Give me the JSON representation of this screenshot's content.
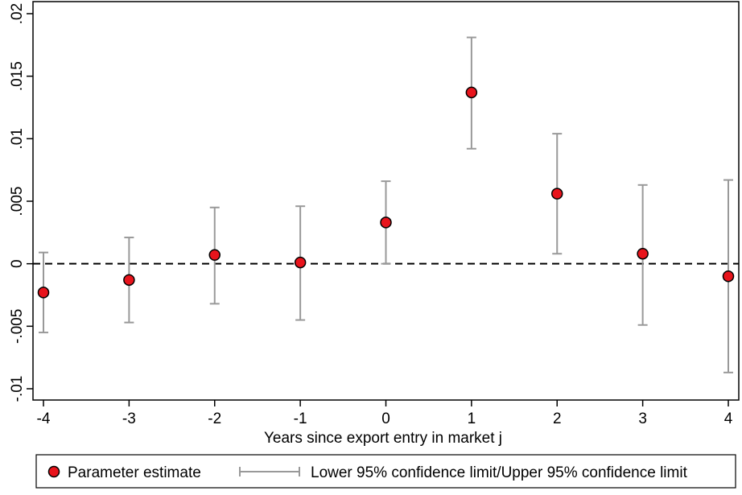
{
  "chart_data": {
    "type": "scatter",
    "title": "",
    "xlabel": "Years since export entry in market j",
    "ylabel": "",
    "x": [
      -4,
      -3,
      -2,
      -1,
      0,
      1,
      2,
      3,
      4
    ],
    "x_tick_labels": [
      "-4",
      "-3",
      "-2",
      "-1",
      "0",
      "1",
      "2",
      "3",
      "4"
    ],
    "y_ticks": [
      -0.01,
      -0.005,
      0,
      0.005,
      0.01,
      0.015,
      0.02
    ],
    "y_tick_labels": [
      "-.01",
      "-.005",
      "0",
      ".005",
      ".01",
      ".015",
      ".02"
    ],
    "xlim": [
      -4,
      4
    ],
    "ylim": [
      -0.01,
      0.02
    ],
    "reference_line_y": 0,
    "grid": false,
    "legend_position": "bottom",
    "series": [
      {
        "name": "Parameter estimate",
        "kind": "point",
        "color": "#e8141c",
        "values": [
          -0.0023,
          -0.0013,
          0.0007,
          0.0001,
          0.0033,
          0.0137,
          0.0056,
          0.0008,
          -0.001
        ]
      },
      {
        "name": "Lower 95% confidence limit/Upper 95% confidence limit",
        "kind": "errorbar",
        "color": "#999999",
        "lower": [
          -0.0055,
          -0.0047,
          -0.0032,
          -0.0045,
          0.0,
          0.0092,
          0.0008,
          -0.0049,
          -0.0087
        ],
        "upper": [
          0.0009,
          0.0021,
          0.0045,
          0.0046,
          0.0066,
          0.0181,
          0.0104,
          0.0063,
          0.0067
        ]
      }
    ]
  }
}
